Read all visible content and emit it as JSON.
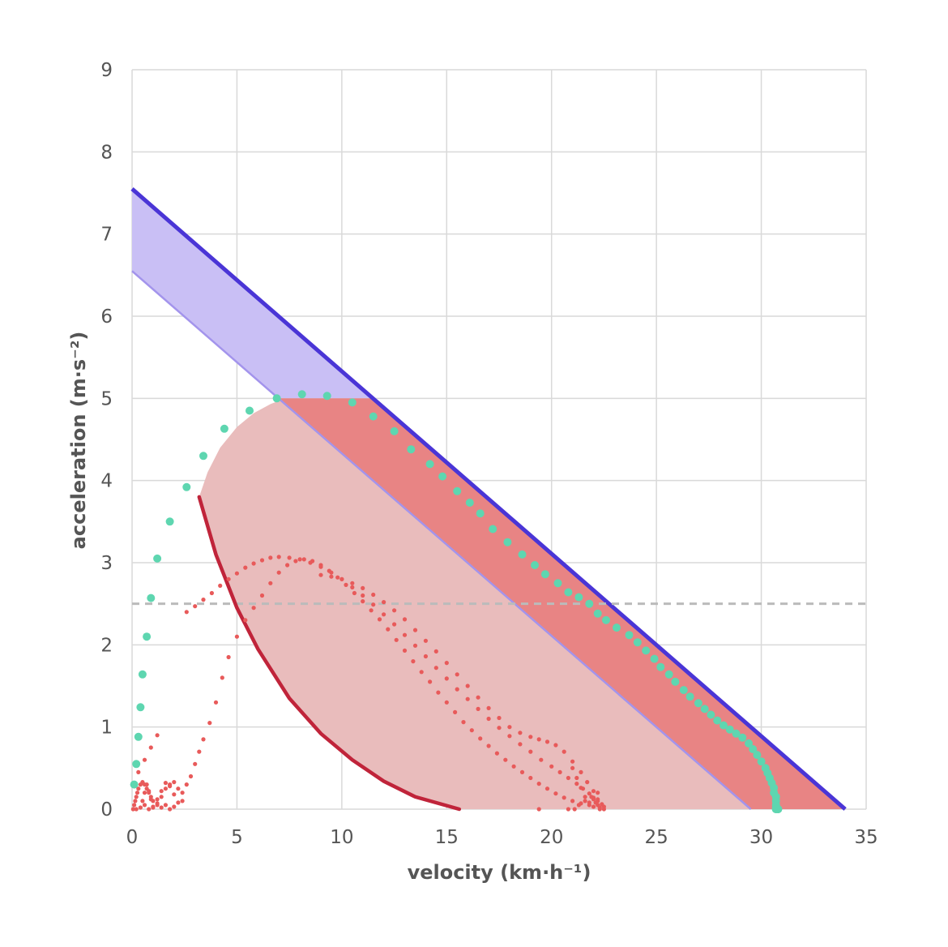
{
  "chart_data": {
    "type": "scatter",
    "title": "",
    "xlabel": "velocity (km·h⁻¹)",
    "ylabel": "acceleration (m·s⁻²)",
    "xlim": [
      0,
      35
    ],
    "ylim": [
      0,
      9
    ],
    "xticks": [
      0,
      5,
      10,
      15,
      20,
      25,
      30,
      35
    ],
    "yticks": [
      0,
      1,
      2,
      3,
      4,
      5,
      6,
      7,
      8,
      9
    ],
    "xtick_labels": [
      "0",
      "5",
      "10",
      "15",
      "20",
      "25",
      "30",
      "35"
    ],
    "ytick_labels": [
      "0",
      "1",
      "2",
      "3",
      "4",
      "5",
      "6",
      "7",
      "8",
      "9"
    ],
    "grid": true,
    "colors": {
      "upper_line": "#4a35d6",
      "lower_line": "#a394ec",
      "band_fill": "#c9bff5",
      "red_band_fill": "#e88484",
      "inner_region_fill": "#e9bcbc",
      "curve": "#c0243a",
      "teal_points": "#5ed6b0",
      "red_points": "#e85a5a",
      "threshold_line": "#bbbbbb"
    },
    "upper_line": {
      "x": [
        0,
        34
      ],
      "y": [
        7.55,
        0
      ]
    },
    "lower_line": {
      "x": [
        0,
        29.5
      ],
      "y": [
        6.55,
        0
      ]
    },
    "acceleration_cap": 5.0,
    "threshold_y": 2.5,
    "inner_curve": {
      "x": [
        3.2,
        4.0,
        5.0,
        6.0,
        7.5,
        9.0,
        10.5,
        12.0,
        13.5,
        15.6
      ],
      "y": [
        3.8,
        3.1,
        2.45,
        1.95,
        1.35,
        0.92,
        0.6,
        0.34,
        0.15,
        0.0
      ]
    },
    "inner_region_top": {
      "x": [
        3.2,
        3.6,
        4.2,
        5.0,
        5.8,
        6.6,
        7.3
      ],
      "y": [
        3.8,
        4.1,
        4.4,
        4.65,
        4.82,
        4.93,
        5.0
      ]
    },
    "teal_series": {
      "x": [
        0.1,
        0.2,
        0.3,
        0.4,
        0.5,
        0.7,
        0.9,
        1.2,
        1.8,
        2.6,
        3.4,
        4.4,
        5.6,
        6.9,
        8.1,
        9.3,
        10.5,
        11.5,
        12.5,
        13.3,
        14.2,
        14.8,
        15.5,
        16.1,
        16.6,
        17.2,
        17.9,
        18.6,
        19.2,
        19.7,
        20.3,
        20.8,
        21.3,
        21.8,
        22.2,
        22.6,
        23.1,
        23.7,
        24.1,
        24.5,
        24.9,
        25.2,
        25.6,
        25.9,
        26.3,
        26.6,
        27.0,
        27.3,
        27.6,
        27.9,
        28.2,
        28.5,
        28.8,
        29.1,
        29.4,
        29.6,
        29.8,
        30.0,
        30.2,
        30.3,
        30.4,
        30.5,
        30.6,
        30.6,
        30.7,
        30.7,
        30.7,
        30.7,
        30.7,
        30.7,
        30.8,
        30.8,
        30.8
      ],
      "y": [
        0.3,
        0.55,
        0.88,
        1.24,
        1.64,
        2.1,
        2.57,
        3.05,
        3.5,
        3.92,
        4.3,
        4.63,
        4.85,
        5.0,
        5.05,
        5.03,
        4.95,
        4.78,
        4.6,
        4.38,
        4.2,
        4.05,
        3.87,
        3.73,
        3.6,
        3.41,
        3.25,
        3.1,
        2.97,
        2.86,
        2.75,
        2.64,
        2.58,
        2.5,
        2.38,
        2.3,
        2.21,
        2.12,
        2.03,
        1.93,
        1.83,
        1.73,
        1.64,
        1.55,
        1.45,
        1.37,
        1.29,
        1.22,
        1.15,
        1.08,
        1.02,
        0.97,
        0.92,
        0.87,
        0.8,
        0.73,
        0.66,
        0.58,
        0.5,
        0.44,
        0.38,
        0.32,
        0.26,
        0.2,
        0.15,
        0.1,
        0.05,
        0.02,
        0.0,
        0.0,
        0.0,
        0.0,
        0.0
      ]
    },
    "red_series": {
      "x": [
        0.05,
        0.1,
        0.15,
        0.2,
        0.25,
        0.3,
        0.4,
        0.5,
        0.6,
        0.7,
        0.8,
        0.9,
        1.0,
        1.2,
        1.4,
        1.6,
        1.8,
        2.0,
        2.2,
        2.4,
        0.2,
        0.4,
        0.6,
        0.8,
        1.0,
        1.2,
        1.4,
        1.6,
        1.8,
        2.0,
        0.3,
        0.6,
        0.9,
        1.2,
        0.5,
        0.6,
        0.7,
        0.8,
        0.9,
        1.0,
        1.2,
        1.4,
        1.6,
        1.8,
        2.0,
        2.2,
        2.4,
        2.6,
        2.8,
        3.0,
        3.2,
        3.4,
        3.7,
        4.0,
        4.3,
        4.6,
        5.0,
        5.4,
        5.8,
        6.2,
        6.6,
        7.0,
        7.4,
        7.8,
        8.2,
        8.6,
        9.0,
        9.4,
        9.8,
        10.2,
        10.6,
        11.0,
        11.4,
        11.8,
        12.2,
        12.6,
        13.0,
        13.4,
        13.8,
        14.2,
        14.6,
        15.0,
        15.4,
        15.8,
        16.2,
        16.6,
        17.0,
        17.4,
        17.8,
        18.2,
        18.6,
        19.0,
        19.4,
        19.8,
        20.2,
        20.6,
        21.0,
        21.4,
        21.8,
        22.0,
        22.2,
        22.3,
        22.3,
        2.6,
        3.0,
        3.4,
        3.8,
        4.2,
        4.6,
        5.0,
        5.4,
        5.8,
        6.2,
        6.6,
        7.0,
        7.5,
        8.0,
        8.5,
        9.0,
        9.5,
        10.0,
        10.5,
        11.0,
        11.5,
        12.0,
        12.5,
        13.0,
        13.5,
        14.0,
        14.5,
        15.0,
        15.5,
        16.0,
        16.5,
        17.0,
        17.5,
        18.0,
        18.5,
        19.0,
        19.5,
        20.0,
        20.4,
        20.8,
        21.2,
        21.5,
        21.8,
        22.0,
        22.2,
        22.4,
        22.5,
        22.5,
        9.0,
        9.5,
        10.0,
        10.5,
        11.0,
        11.5,
        12.0,
        12.5,
        13.0,
        13.5,
        14.0,
        14.5,
        15.0,
        15.5,
        16.0,
        16.5,
        17.0,
        17.5,
        18.0,
        18.5,
        19.0,
        19.4,
        19.8,
        20.2,
        20.6,
        21.0,
        21.4,
        21.7,
        22.0,
        22.2,
        21.0,
        21.2,
        21.4,
        21.6,
        21.8,
        22.0,
        22.2,
        21.3,
        21.6,
        21.9,
        22.1,
        19.4,
        20.8,
        21.1
      ],
      "y": [
        0.0,
        0.05,
        0.1,
        0.15,
        0.2,
        0.25,
        0.3,
        0.33,
        0.3,
        0.25,
        0.2,
        0.15,
        0.1,
        0.05,
        0.15,
        0.25,
        0.3,
        0.33,
        0.25,
        0.1,
        0.0,
        0.02,
        0.05,
        0.0,
        0.03,
        0.07,
        0.02,
        0.05,
        0.0,
        0.03,
        0.45,
        0.6,
        0.75,
        0.9,
        0.1,
        0.2,
        0.3,
        0.22,
        0.12,
        0.02,
        0.12,
        0.22,
        0.32,
        0.28,
        0.18,
        0.08,
        0.2,
        0.3,
        0.4,
        0.55,
        0.7,
        0.85,
        1.05,
        1.3,
        1.6,
        1.85,
        2.1,
        2.3,
        2.45,
        2.6,
        2.75,
        2.88,
        2.97,
        3.02,
        3.04,
        3.02,
        2.97,
        2.9,
        2.82,
        2.73,
        2.63,
        2.53,
        2.42,
        2.31,
        2.19,
        2.06,
        1.93,
        1.8,
        1.67,
        1.55,
        1.42,
        1.3,
        1.18,
        1.06,
        0.96,
        0.86,
        0.77,
        0.68,
        0.6,
        0.52,
        0.45,
        0.38,
        0.31,
        0.25,
        0.19,
        0.14,
        0.1,
        0.07,
        0.05,
        0.03,
        0.05,
        0.02,
        0.0,
        2.4,
        2.47,
        2.55,
        2.63,
        2.72,
        2.8,
        2.87,
        2.94,
        2.99,
        3.03,
        3.06,
        3.07,
        3.06,
        3.04,
        3.0,
        2.95,
        2.88,
        2.8,
        2.7,
        2.6,
        2.49,
        2.37,
        2.25,
        2.12,
        1.99,
        1.86,
        1.72,
        1.59,
        1.46,
        1.34,
        1.22,
        1.1,
        0.99,
        0.89,
        0.79,
        0.7,
        0.6,
        0.52,
        0.45,
        0.38,
        0.31,
        0.25,
        0.19,
        0.14,
        0.1,
        0.06,
        0.03,
        0.0,
        2.85,
        2.83,
        2.8,
        2.75,
        2.69,
        2.61,
        2.52,
        2.42,
        2.31,
        2.18,
        2.05,
        1.92,
        1.78,
        1.64,
        1.5,
        1.36,
        1.23,
        1.11,
        1.0,
        0.93,
        0.88,
        0.85,
        0.82,
        0.78,
        0.7,
        0.58,
        0.45,
        0.33,
        0.22,
        0.12,
        0.5,
        0.38,
        0.26,
        0.15,
        0.08,
        0.12,
        0.2,
        0.05,
        0.1,
        0.15,
        0.08,
        0.0,
        0.0,
        0.0
      ]
    }
  }
}
